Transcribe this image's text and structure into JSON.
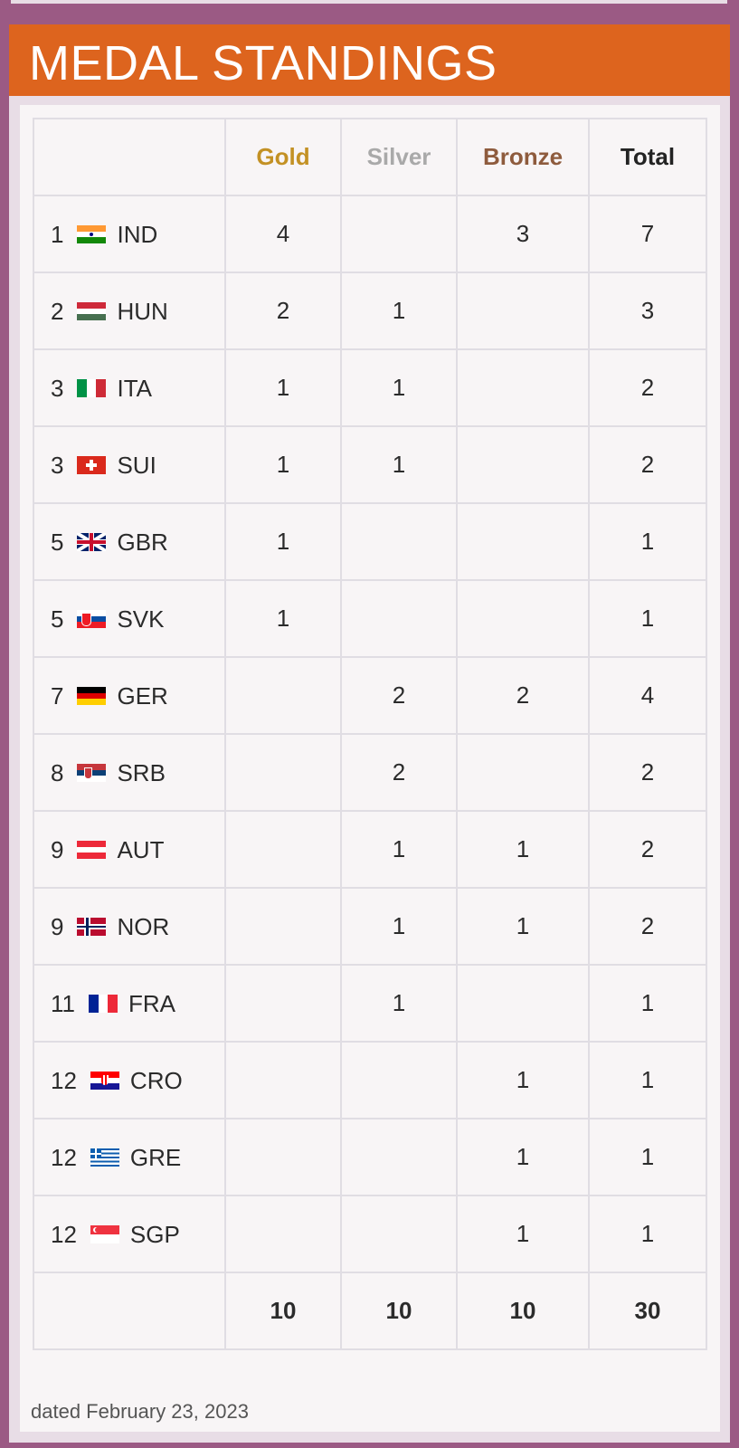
{
  "page": {
    "title": "MEDAL STANDINGS",
    "dated": "dated February 23, 2023"
  },
  "colors": {
    "background": "#9b5a84",
    "banner": "#dd641e",
    "gold": "#c39124",
    "silver": "#a9a9a9",
    "bronze": "#8e5b3d"
  },
  "table": {
    "headers": {
      "nation": "",
      "gold": "Gold",
      "silver": "Silver",
      "bronze": "Bronze",
      "total": "Total"
    },
    "rows": [
      {
        "rank": "1",
        "flag": "india-flag-icon",
        "code": "IND",
        "gold": "4",
        "silver": "",
        "bronze": "3",
        "total": "7"
      },
      {
        "rank": "2",
        "flag": "hungary-flag-icon",
        "code": "HUN",
        "gold": "2",
        "silver": "1",
        "bronze": "",
        "total": "3"
      },
      {
        "rank": "3",
        "flag": "italy-flag-icon",
        "code": "ITA",
        "gold": "1",
        "silver": "1",
        "bronze": "",
        "total": "2"
      },
      {
        "rank": "3",
        "flag": "switzerland-flag-icon",
        "code": "SUI",
        "gold": "1",
        "silver": "1",
        "bronze": "",
        "total": "2"
      },
      {
        "rank": "5",
        "flag": "uk-flag-icon",
        "code": "GBR",
        "gold": "1",
        "silver": "",
        "bronze": "",
        "total": "1"
      },
      {
        "rank": "5",
        "flag": "slovakia-flag-icon",
        "code": "SVK",
        "gold": "1",
        "silver": "",
        "bronze": "",
        "total": "1"
      },
      {
        "rank": "7",
        "flag": "germany-flag-icon",
        "code": "GER",
        "gold": "",
        "silver": "2",
        "bronze": "2",
        "total": "4"
      },
      {
        "rank": "8",
        "flag": "serbia-flag-icon",
        "code": "SRB",
        "gold": "",
        "silver": "2",
        "bronze": "",
        "total": "2"
      },
      {
        "rank": "9",
        "flag": "austria-flag-icon",
        "code": "AUT",
        "gold": "",
        "silver": "1",
        "bronze": "1",
        "total": "2"
      },
      {
        "rank": "9",
        "flag": "norway-flag-icon",
        "code": "NOR",
        "gold": "",
        "silver": "1",
        "bronze": "1",
        "total": "2"
      },
      {
        "rank": "11",
        "flag": "france-flag-icon",
        "code": "FRA",
        "gold": "",
        "silver": "1",
        "bronze": "",
        "total": "1"
      },
      {
        "rank": "12",
        "flag": "croatia-flag-icon",
        "code": "CRO",
        "gold": "",
        "silver": "",
        "bronze": "1",
        "total": "1"
      },
      {
        "rank": "12",
        "flag": "greece-flag-icon",
        "code": "GRE",
        "gold": "",
        "silver": "",
        "bronze": "1",
        "total": "1"
      },
      {
        "rank": "12",
        "flag": "singapore-flag-icon",
        "code": "SGP",
        "gold": "",
        "silver": "",
        "bronze": "1",
        "total": "1"
      }
    ],
    "totals": {
      "gold": "10",
      "silver": "10",
      "bronze": "10",
      "total": "30"
    }
  }
}
